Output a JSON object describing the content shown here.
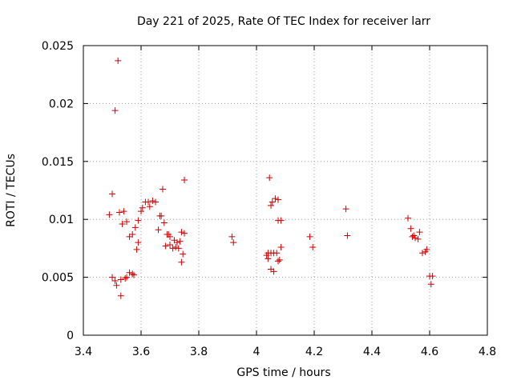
{
  "chart_data": {
    "type": "scatter",
    "title": "Day 221 of 2025, Rate Of TEC Index for receiver larr",
    "xlabel": "GPS time / hours",
    "ylabel": "ROTI / TECUs",
    "xlim": [
      3.4,
      4.8
    ],
    "ylim": [
      0,
      0.025
    ],
    "x_ticks": [
      "3.4",
      "3.6",
      "3.8",
      "4",
      "4.2",
      "4.4",
      "4.6",
      "4.8"
    ],
    "y_ticks": [
      "0",
      "0.005",
      "0.01",
      "0.015",
      "0.02",
      "0.025"
    ],
    "grid": true,
    "marker": "+",
    "color": "#cc0000",
    "points": [
      [
        3.49,
        0.0104
      ],
      [
        3.5,
        0.0122
      ],
      [
        3.5,
        0.005
      ],
      [
        3.51,
        0.0194
      ],
      [
        3.51,
        0.0047
      ],
      [
        3.515,
        0.0043
      ],
      [
        3.52,
        0.0237
      ],
      [
        3.525,
        0.0106
      ],
      [
        3.53,
        0.0048
      ],
      [
        3.53,
        0.0034
      ],
      [
        3.535,
        0.0096
      ],
      [
        3.54,
        0.0107
      ],
      [
        3.545,
        0.0049
      ],
      [
        3.55,
        0.0098
      ],
      [
        3.55,
        0.005
      ],
      [
        3.56,
        0.0085
      ],
      [
        3.56,
        0.0054
      ],
      [
        3.57,
        0.0087
      ],
      [
        3.57,
        0.0053
      ],
      [
        3.575,
        0.0052
      ],
      [
        3.58,
        0.0093
      ],
      [
        3.585,
        0.0074
      ],
      [
        3.59,
        0.0099
      ],
      [
        3.59,
        0.008
      ],
      [
        3.6,
        0.0107
      ],
      [
        3.605,
        0.011
      ],
      [
        3.615,
        0.0115
      ],
      [
        3.625,
        0.0115
      ],
      [
        3.63,
        0.0111
      ],
      [
        3.64,
        0.0116
      ],
      [
        3.65,
        0.0115
      ],
      [
        3.66,
        0.0091
      ],
      [
        3.665,
        0.0103
      ],
      [
        3.67,
        0.0103
      ],
      [
        3.675,
        0.0126
      ],
      [
        3.68,
        0.0097
      ],
      [
        3.685,
        0.0077
      ],
      [
        3.69,
        0.0087
      ],
      [
        3.695,
        0.0087
      ],
      [
        3.7,
        0.0078
      ],
      [
        3.7,
        0.0085
      ],
      [
        3.71,
        0.0075
      ],
      [
        3.715,
        0.0082
      ],
      [
        3.72,
        0.0076
      ],
      [
        3.725,
        0.008
      ],
      [
        3.73,
        0.0075
      ],
      [
        3.735,
        0.0081
      ],
      [
        3.74,
        0.0063
      ],
      [
        3.74,
        0.0089
      ],
      [
        3.745,
        0.007
      ],
      [
        3.75,
        0.0088
      ],
      [
        3.75,
        0.0134
      ],
      [
        3.915,
        0.0085
      ],
      [
        3.92,
        0.008
      ],
      [
        4.035,
        0.0069
      ],
      [
        4.04,
        0.0071
      ],
      [
        4.04,
        0.0066
      ],
      [
        4.045,
        0.0136
      ],
      [
        4.05,
        0.0112
      ],
      [
        4.05,
        0.0071
      ],
      [
        4.05,
        0.0057
      ],
      [
        4.055,
        0.0115
      ],
      [
        4.06,
        0.0071
      ],
      [
        4.06,
        0.0055
      ],
      [
        4.065,
        0.0118
      ],
      [
        4.07,
        0.0071
      ],
      [
        4.075,
        0.0117
      ],
      [
        4.075,
        0.0099
      ],
      [
        4.075,
        0.0064
      ],
      [
        4.08,
        0.0065
      ],
      [
        4.085,
        0.0099
      ],
      [
        4.085,
        0.0076
      ],
      [
        4.185,
        0.0085
      ],
      [
        4.195,
        0.0076
      ],
      [
        4.31,
        0.0109
      ],
      [
        4.315,
        0.0086
      ],
      [
        4.525,
        0.0101
      ],
      [
        4.535,
        0.0092
      ],
      [
        4.54,
        0.0085
      ],
      [
        4.545,
        0.0086
      ],
      [
        4.55,
        0.0084
      ],
      [
        4.56,
        0.0083
      ],
      [
        4.565,
        0.0089
      ],
      [
        4.575,
        0.0071
      ],
      [
        4.585,
        0.0072
      ],
      [
        4.59,
        0.0074
      ],
      [
        4.6,
        0.0051
      ],
      [
        4.605,
        0.0044
      ],
      [
        4.61,
        0.0051
      ]
    ]
  }
}
